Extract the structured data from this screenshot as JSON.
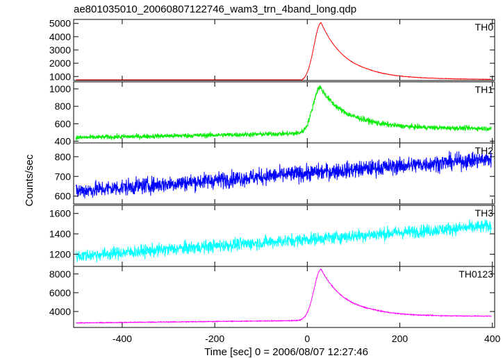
{
  "chart_data": {
    "type": "line",
    "title": "ae801035010_20060807122746_wam3_trn_4band_long.qdp",
    "xlabel": "Time [sec] 0 = 2006/08/07 12:27:46",
    "ylabel": "Counts/sec",
    "xlim": [
      -505,
      405
    ],
    "xticks": [
      -400,
      -200,
      0,
      200,
      400
    ],
    "grid": false,
    "panels": [
      {
        "name": "TH0",
        "color": "#ff0000",
        "ylim": [
          700,
          5300
        ],
        "yticks": [
          1000,
          2000,
          3000,
          4000,
          5000
        ],
        "baseline": {
          "start": 530,
          "end": 710
        },
        "peak": {
          "t": 30,
          "value": 5050,
          "onset": -25,
          "rise": 22,
          "decay": 55
        },
        "tail": {
          "from": 130,
          "value": 860,
          "to": 395,
          "end_value": 780
        },
        "noise": 12
      },
      {
        "name": "TH1",
        "color": "#00ee00",
        "ylim": [
          380,
          1080
        ],
        "yticks": [
          400,
          600,
          800,
          1000
        ],
        "baseline": {
          "start": 440,
          "end": 530
        },
        "peak": {
          "t": 28,
          "value": 1020,
          "onset": -30,
          "rise": 22,
          "decay": 55
        },
        "tail": {
          "from": 120,
          "value": 555,
          "to": 400,
          "end_value": 545
        },
        "noise": 20
      },
      {
        "name": "TH2",
        "color": "#0000ff",
        "ylim": [
          560,
          870
        ],
        "yticks": [
          600,
          700,
          800
        ],
        "baseline": {
          "start": 625,
          "end": 790
        },
        "noise": 30
      },
      {
        "name": "TH3",
        "color": "#00ffff",
        "ylim": [
          1080,
          1680
        ],
        "yticks": [
          1200,
          1400,
          1600
        ],
        "baseline": {
          "start": 1180,
          "end": 1480
        },
        "noise": 45
      },
      {
        "name": "TH0123",
        "color": "#ff00ff",
        "ylim": [
          2300,
          8800
        ],
        "yticks": [
          4000,
          6000,
          8000
        ],
        "baseline": {
          "start": 2780,
          "end": 3250
        },
        "peak": {
          "t": 30,
          "value": 8500,
          "onset": -30,
          "rise": 22,
          "decay": 55
        },
        "tail": {
          "from": 140,
          "value": 3520,
          "to": 400,
          "end_value": 3500
        },
        "noise": 30
      }
    ]
  }
}
